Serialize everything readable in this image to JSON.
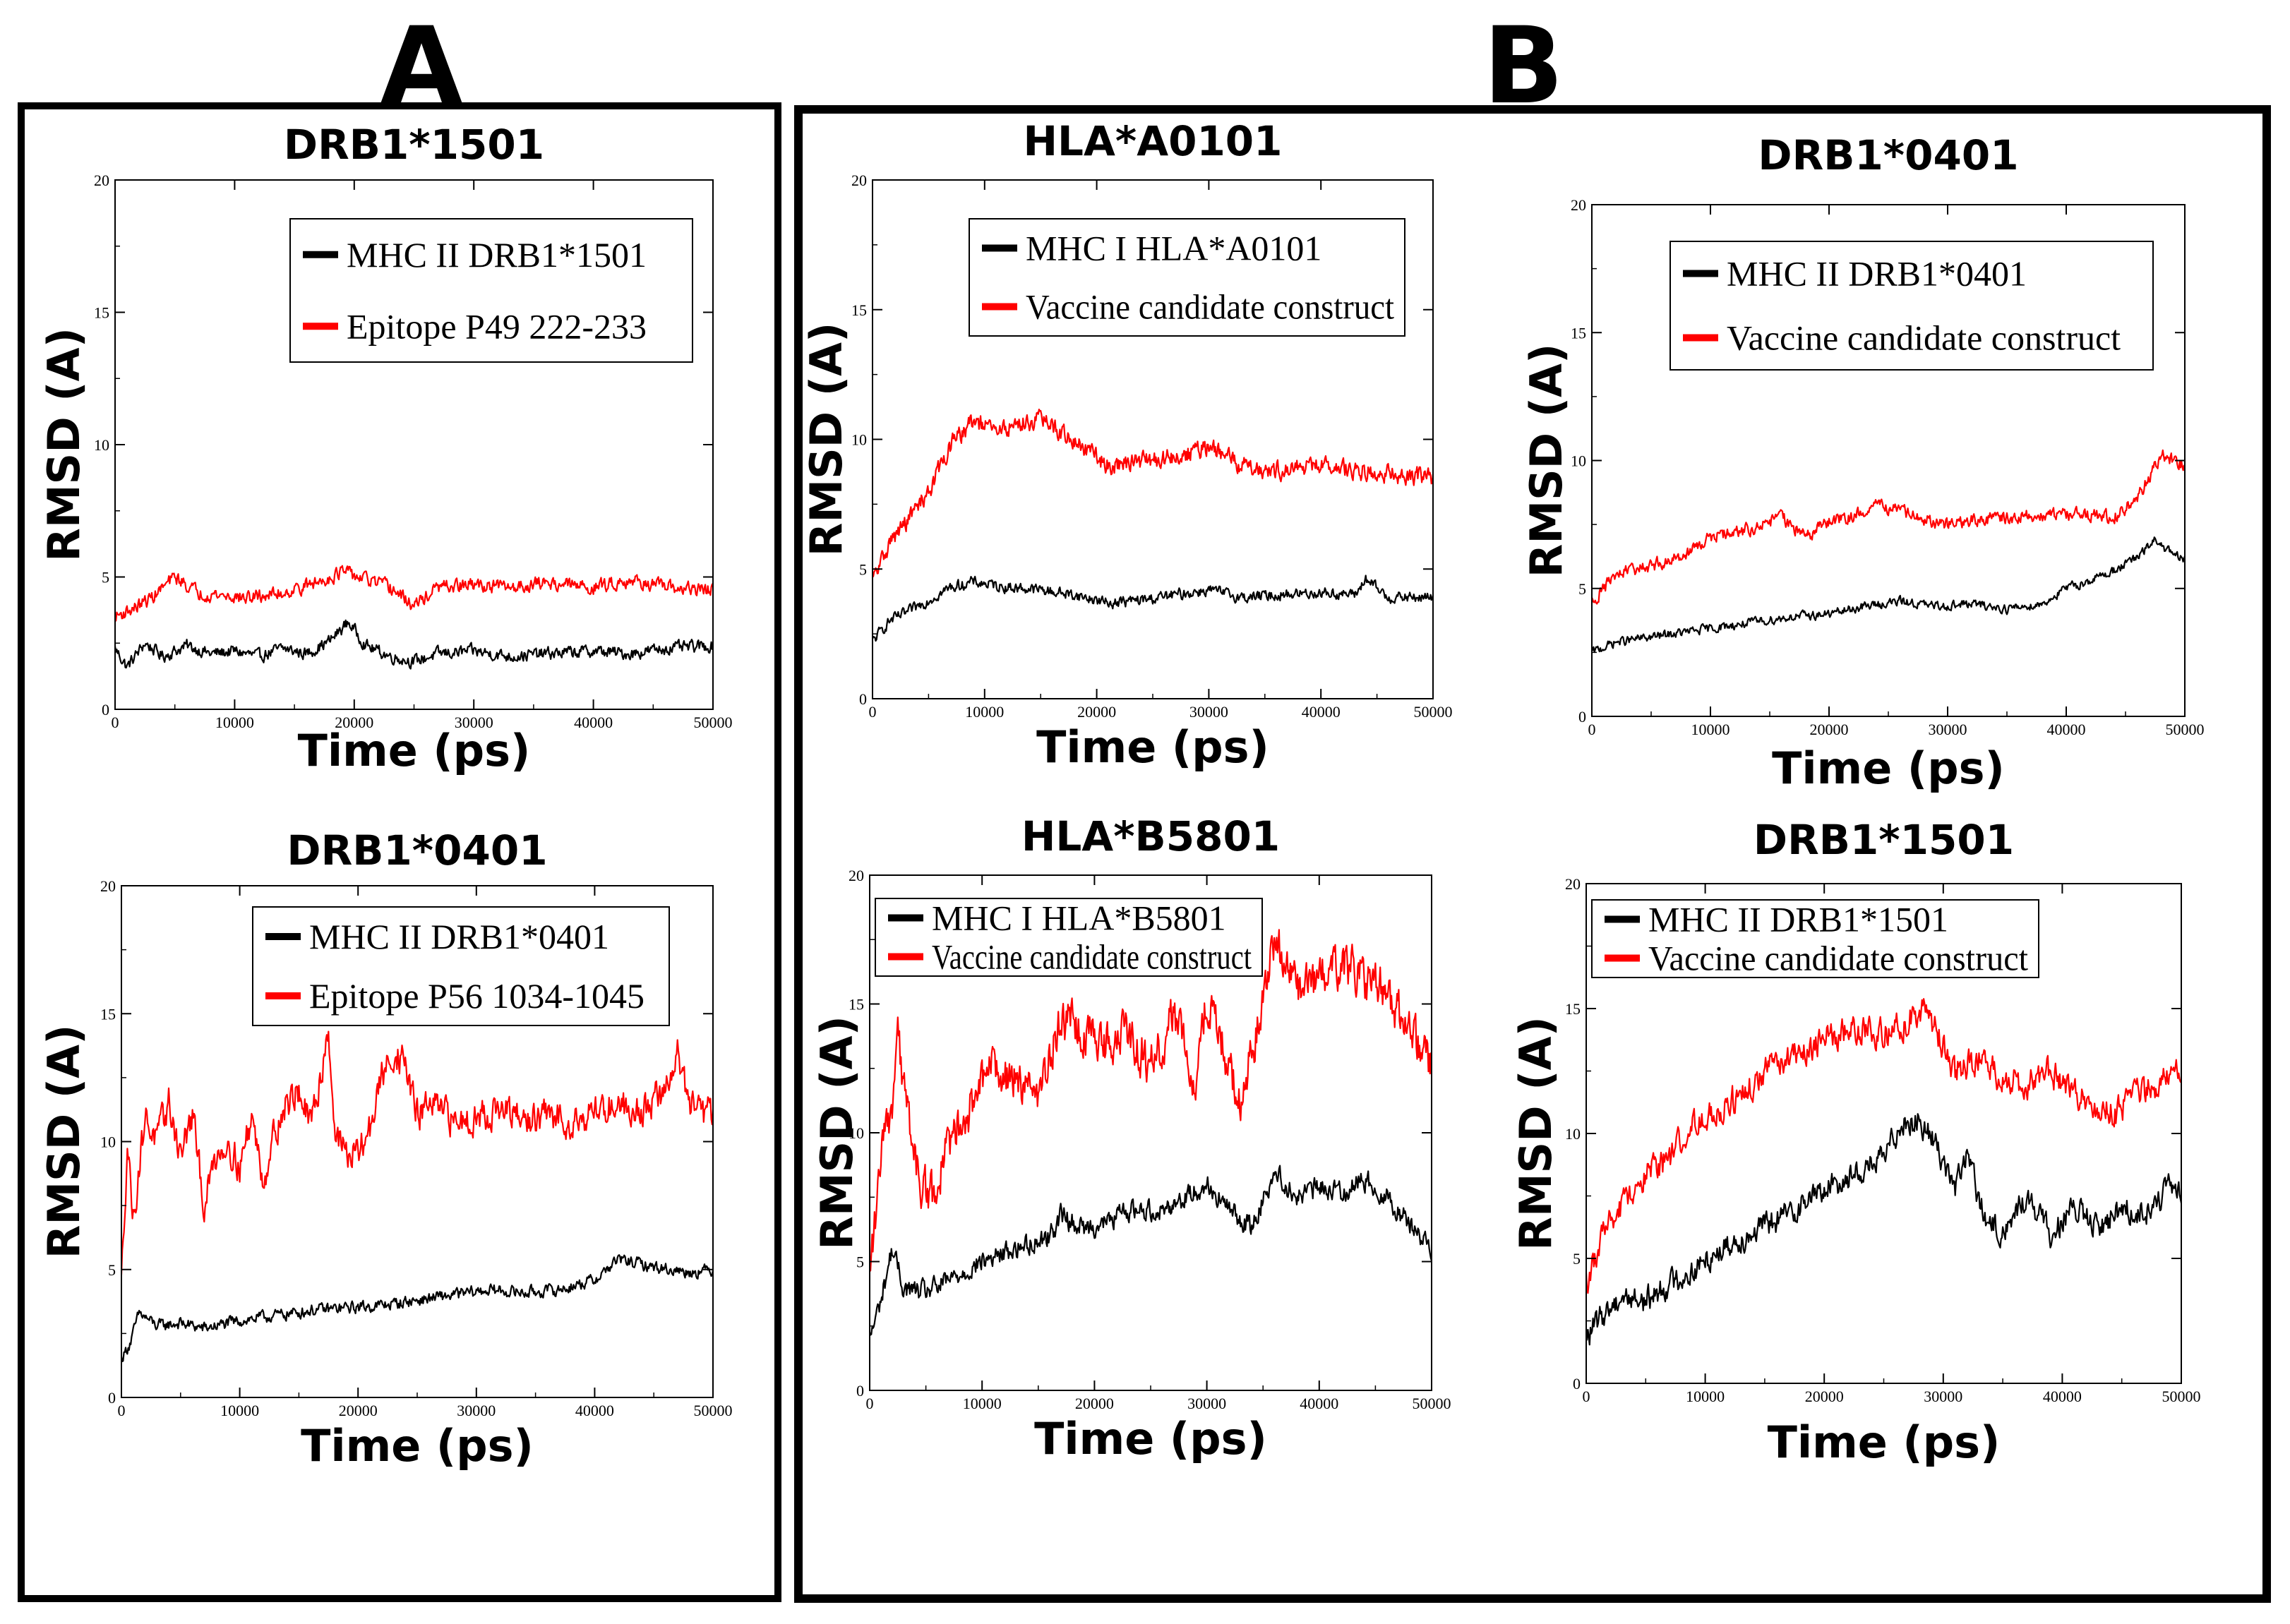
{
  "panels": [
    {
      "letter": "A"
    },
    {
      "letter": "B"
    }
  ],
  "chart_data": [
    {
      "type": "line",
      "panel": "A",
      "title": "DRB1*1501",
      "xlabel": "Time (ps)",
      "ylabel": "RMSD (A)",
      "xlim": [
        0,
        50000
      ],
      "ylim": [
        0,
        20
      ],
      "xticks": [
        0,
        10000,
        20000,
        30000,
        40000,
        50000
      ],
      "yticks": [
        0,
        5,
        10,
        15,
        20
      ],
      "grid": false,
      "legend_position": "top-right",
      "series": [
        {
          "name": "MHC II DRB1*1501",
          "color": "#000000",
          "x": [
            0,
            1000,
            2500,
            4000,
            6000,
            8000,
            10000,
            12000,
            14000,
            16000,
            18000,
            19500,
            21000,
            23000,
            25000,
            27000,
            30000,
            33000,
            36000,
            40000,
            43000,
            46000,
            50000
          ],
          "y": [
            2.3,
            1.6,
            2.5,
            2.0,
            2.4,
            2.1,
            2.2,
            2.0,
            2.3,
            2.1,
            2.6,
            3.3,
            2.4,
            2.0,
            1.8,
            2.1,
            2.2,
            2.0,
            2.1,
            2.2,
            2.1,
            2.3,
            2.4
          ],
          "noise": 0.2
        },
        {
          "name": "Epitope P49 222-233",
          "color": "#ff0000",
          "x": [
            0,
            1500,
            3000,
            5000,
            7000,
            9000,
            11000,
            14000,
            17000,
            19000,
            21000,
            23000,
            25000,
            27000,
            30000,
            33000,
            36000,
            40000,
            43000,
            46000,
            50000
          ],
          "y": [
            3.5,
            3.8,
            4.2,
            5.0,
            4.4,
            4.3,
            4.2,
            4.4,
            4.8,
            5.2,
            4.9,
            4.6,
            3.9,
            4.6,
            4.7,
            4.6,
            4.8,
            4.6,
            4.9,
            4.6,
            4.5
          ],
          "noise": 0.22
        }
      ]
    },
    {
      "type": "line",
      "panel": "A",
      "title": "DRB1*0401",
      "xlabel": "Time (ps)",
      "ylabel": "RMSD (A)",
      "xlim": [
        0,
        50000
      ],
      "ylim": [
        0,
        20
      ],
      "xticks": [
        0,
        10000,
        20000,
        30000,
        40000,
        50000
      ],
      "yticks": [
        0,
        5,
        10,
        15,
        20
      ],
      "grid": false,
      "legend_position": "top-right",
      "series": [
        {
          "name": "MHC II DRB1*0401",
          "color": "#000000",
          "x": [
            0,
            800,
            1500,
            3000,
            5000,
            7000,
            10000,
            13000,
            16000,
            19000,
            22000,
            25000,
            28000,
            31000,
            34000,
            37000,
            40000,
            42000,
            45000,
            48000,
            50000
          ],
          "y": [
            1.5,
            2.2,
            3.3,
            2.8,
            2.9,
            2.7,
            3.0,
            3.2,
            3.4,
            3.5,
            3.6,
            3.8,
            4.0,
            4.2,
            4.1,
            4.2,
            4.6,
            5.4,
            5.1,
            4.9,
            5.0
          ],
          "noise": 0.2
        },
        {
          "name": "Epitope P56 1034-1045",
          "color": "#ff0000",
          "x": [
            0,
            500,
            1000,
            2000,
            3000,
            4000,
            5000,
            6000,
            7000,
            8000,
            9000,
            10000,
            11000,
            12000,
            13000,
            14000,
            15000,
            16000,
            17000,
            17500,
            18000,
            19000,
            20000,
            21000,
            22000,
            23000,
            24000,
            25000,
            26000,
            28000,
            30000,
            32000,
            34000,
            36000,
            38000,
            40000,
            42000,
            44000,
            46000,
            47000,
            48000,
            49000,
            50000
          ],
          "y": [
            4.5,
            10.0,
            7.0,
            11.0,
            10.0,
            11.5,
            9.5,
            11.0,
            7.5,
            9.5,
            10.0,
            9.0,
            11.0,
            8.5,
            10.5,
            11.5,
            12.0,
            10.5,
            13.0,
            14.5,
            10.5,
            9.5,
            9.5,
            10.5,
            12.5,
            13.5,
            13.0,
            11.0,
            11.5,
            10.8,
            11.0,
            11.2,
            10.8,
            11.0,
            10.8,
            11.2,
            11.5,
            11.2,
            12.0,
            13.5,
            11.5,
            11.0,
            11.2
          ],
          "noise": 0.55
        }
      ]
    },
    {
      "type": "line",
      "panel": "B",
      "title": "HLA*A0101",
      "xlabel": "Time (ps)",
      "ylabel": "RMSD (A)",
      "xlim": [
        0,
        50000
      ],
      "ylim": [
        0,
        20
      ],
      "xticks": [
        0,
        10000,
        20000,
        30000,
        40000,
        50000
      ],
      "yticks": [
        0,
        5,
        10,
        15,
        20
      ],
      "grid": false,
      "legend_position": "top-right",
      "series": [
        {
          "name": "MHC I HLA*A0101",
          "color": "#000000",
          "x": [
            0,
            1500,
            3000,
            5000,
            7000,
            9000,
            12000,
            15000,
            18000,
            21000,
            24000,
            27000,
            30000,
            33000,
            36000,
            40000,
            43000,
            44000,
            46000,
            50000
          ],
          "y": [
            2.2,
            3.0,
            3.3,
            3.8,
            4.3,
            4.5,
            4.3,
            4.2,
            4.0,
            3.7,
            3.8,
            4.0,
            4.2,
            3.9,
            4.0,
            4.1,
            4.0,
            4.6,
            3.9,
            3.9
          ],
          "noise": 0.18
        },
        {
          "name": "Vaccine candidate construct",
          "color": "#ff0000",
          "x": [
            0,
            1500,
            3000,
            5000,
            7000,
            9000,
            11000,
            13000,
            15000,
            17000,
            19000,
            21000,
            23000,
            25000,
            27000,
            30000,
            33000,
            36000,
            40000,
            43000,
            46000,
            50000
          ],
          "y": [
            4.5,
            6.0,
            6.8,
            8.0,
            9.8,
            10.7,
            10.3,
            10.6,
            10.8,
            10.2,
            9.6,
            9.0,
            9.1,
            9.2,
            9.3,
            9.7,
            9.0,
            8.8,
            9.0,
            8.8,
            8.7,
            8.5
          ],
          "noise": 0.3
        }
      ]
    },
    {
      "type": "line",
      "panel": "B",
      "title": "DRB1*0401",
      "xlabel": "Time (ps)",
      "ylabel": "RMSD (A)",
      "xlim": [
        0,
        50000
      ],
      "ylim": [
        0,
        20
      ],
      "xticks": [
        0,
        10000,
        20000,
        30000,
        40000,
        50000
      ],
      "yticks": [
        0,
        5,
        10,
        15,
        20
      ],
      "grid": false,
      "legend_position": "top-right",
      "series": [
        {
          "name": "MHC II DRB1*0401",
          "color": "#000000",
          "x": [
            0,
            2000,
            5000,
            8000,
            11000,
            14000,
            17000,
            20000,
            23000,
            26000,
            29000,
            32000,
            35000,
            38000,
            40000,
            42000,
            44000,
            46000,
            47500,
            49000,
            50000
          ],
          "y": [
            2.5,
            2.9,
            3.1,
            3.3,
            3.5,
            3.7,
            3.9,
            4.0,
            4.3,
            4.5,
            4.3,
            4.4,
            4.2,
            4.4,
            5.0,
            5.3,
            5.7,
            6.2,
            6.9,
            6.3,
            6.1
          ],
          "noise": 0.15
        },
        {
          "name": "Vaccine candidate construct",
          "color": "#ff0000",
          "x": [
            0,
            2000,
            4000,
            6000,
            8000,
            10000,
            12000,
            14000,
            16000,
            18000,
            20000,
            22000,
            24000,
            26000,
            28000,
            30000,
            33000,
            36000,
            40000,
            44000,
            46000,
            48000,
            50000
          ],
          "y": [
            4.5,
            5.5,
            5.8,
            6.0,
            6.4,
            7.0,
            7.2,
            7.4,
            7.8,
            7.0,
            7.6,
            7.8,
            8.3,
            8.0,
            7.7,
            7.5,
            7.7,
            7.8,
            7.9,
            7.8,
            8.5,
            10.2,
            9.8
          ],
          "noise": 0.22
        }
      ]
    },
    {
      "type": "line",
      "panel": "B",
      "title": "HLA*B5801",
      "xlabel": "Time (ps)",
      "ylabel": "RMSD (A)",
      "xlim": [
        0,
        50000
      ],
      "ylim": [
        0,
        20
      ],
      "xticks": [
        0,
        10000,
        20000,
        30000,
        40000,
        50000
      ],
      "yticks": [
        0,
        5,
        10,
        15,
        20
      ],
      "grid": false,
      "legend_position": "top-left",
      "series": [
        {
          "name": "MHC I HLA*B5801",
          "color": "#000000",
          "x": [
            0,
            1000,
            2000,
            3000,
            4500,
            6000,
            8000,
            10000,
            13000,
            16000,
            17000,
            19000,
            21000,
            23000,
            26000,
            28000,
            30000,
            32000,
            34000,
            36000,
            38000,
            40000,
            42000,
            44000,
            46000,
            48000,
            50000
          ],
          "y": [
            2.0,
            3.5,
            5.5,
            4.0,
            3.8,
            4.0,
            4.5,
            5.0,
            5.5,
            6.0,
            6.8,
            6.3,
            6.5,
            7.0,
            7.0,
            7.5,
            8.0,
            7.0,
            6.3,
            8.5,
            7.5,
            7.9,
            7.7,
            8.2,
            7.5,
            6.5,
            5.5
          ],
          "noise": 0.35
        },
        {
          "name": "Vaccine candidate construct",
          "color": "#ff0000",
          "x": [
            0,
            1000,
            2000,
            2500,
            3500,
            4500,
            5500,
            7000,
            9000,
            11000,
            13000,
            15000,
            17000,
            19000,
            21000,
            23000,
            25000,
            27000,
            29000,
            30000,
            31000,
            33000,
            35000,
            36000,
            38000,
            40000,
            42000,
            44000,
            46000,
            48000,
            50000
          ],
          "y": [
            4.5,
            9.0,
            11.0,
            13.5,
            10.5,
            8.0,
            7.5,
            9.5,
            11.0,
            12.5,
            12.0,
            11.5,
            14.5,
            14.0,
            13.5,
            14.0,
            12.5,
            14.5,
            12.0,
            15.5,
            14.0,
            11.0,
            15.0,
            17.5,
            15.5,
            16.0,
            16.5,
            16.0,
            15.5,
            14.0,
            12.5
          ],
          "noise": 0.75
        }
      ]
    },
    {
      "type": "line",
      "panel": "B",
      "title": "DRB1*1501",
      "xlabel": "Time (ps)",
      "ylabel": "RMSD (A)",
      "xlim": [
        0,
        50000
      ],
      "ylim": [
        0,
        20
      ],
      "xticks": [
        0,
        10000,
        20000,
        30000,
        40000,
        50000
      ],
      "yticks": [
        0,
        5,
        10,
        15,
        20
      ],
      "grid": false,
      "legend_position": "top-left",
      "series": [
        {
          "name": "MHC II DRB1*1501",
          "color": "#000000",
          "x": [
            0,
            1500,
            3000,
            5000,
            7000,
            9000,
            11000,
            13000,
            15000,
            17000,
            19000,
            21000,
            23000,
            25000,
            26500,
            28000,
            29500,
            31000,
            32000,
            33500,
            35000,
            37000,
            39000,
            41000,
            43000,
            45000,
            47000,
            49000,
            50000
          ],
          "y": [
            1.8,
            2.8,
            3.5,
            3.3,
            4.0,
            4.5,
            5.3,
            5.8,
            6.3,
            6.8,
            7.5,
            8.0,
            8.5,
            9.0,
            10.5,
            10.5,
            9.5,
            7.8,
            9.2,
            6.5,
            6.0,
            7.5,
            6.0,
            7.0,
            6.2,
            7.0,
            6.8,
            7.8,
            7.5
          ],
          "noise": 0.45
        },
        {
          "name": "Vaccine candidate construct",
          "color": "#ff0000",
          "x": [
            0,
            1500,
            3000,
            5000,
            7000,
            9000,
            11000,
            13000,
            15000,
            17000,
            19000,
            21000,
            23000,
            25000,
            27000,
            28000,
            29500,
            31000,
            33000,
            35000,
            37000,
            39000,
            41000,
            43000,
            44500,
            46000,
            48000,
            50000
          ],
          "y": [
            4.0,
            6.0,
            7.0,
            8.5,
            9.0,
            10.5,
            11.0,
            11.5,
            12.5,
            13.0,
            13.5,
            14.0,
            14.2,
            14.0,
            14.5,
            15.0,
            14.0,
            12.5,
            13.0,
            12.2,
            12.0,
            12.5,
            11.5,
            11.0,
            10.8,
            11.5,
            12.0,
            12.5
          ],
          "noise": 0.5
        }
      ]
    }
  ]
}
